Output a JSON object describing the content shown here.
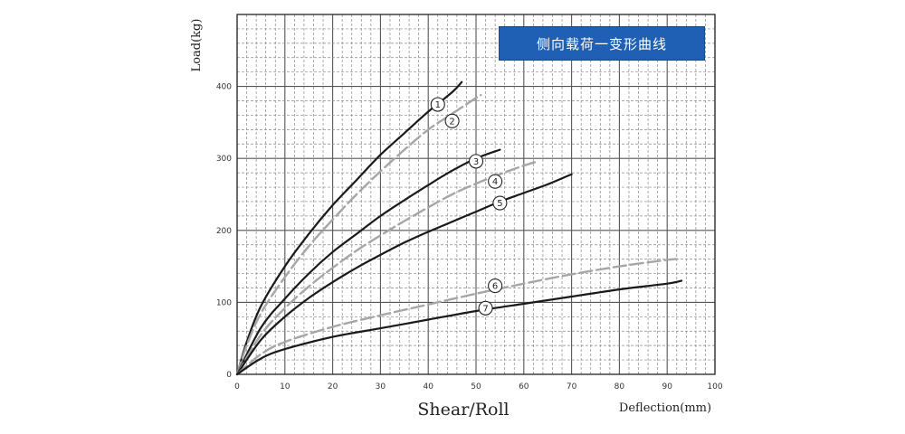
{
  "chart_data": {
    "type": "line",
    "title_badge": "侧向载荷一变形曲线",
    "bottom_title": "Shear/Roll",
    "xlabel": "Deflection(mm)",
    "ylabel": "Load(kg)",
    "xlim": [
      0,
      100
    ],
    "ylim": [
      0,
      500
    ],
    "x_ticks": [
      0,
      10,
      20,
      30,
      40,
      50,
      60,
      70,
      80,
      90,
      100
    ],
    "y_ticks": [
      0,
      100,
      200,
      300,
      400
    ],
    "grid": true,
    "series": [
      {
        "name": "1",
        "color": "#1a1a1a",
        "dashed": false,
        "points": [
          [
            0,
            0
          ],
          [
            2,
            45
          ],
          [
            5,
            95
          ],
          [
            10,
            150
          ],
          [
            15,
            195
          ],
          [
            20,
            235
          ],
          [
            25,
            270
          ],
          [
            30,
            305
          ],
          [
            35,
            335
          ],
          [
            40,
            365
          ],
          [
            45,
            392
          ],
          [
            47,
            406
          ]
        ],
        "label_at": [
          42,
          375
        ]
      },
      {
        "name": "2",
        "color": "#a6a6a6",
        "dashed": true,
        "points": [
          [
            0,
            0
          ],
          [
            2,
            40
          ],
          [
            5,
            85
          ],
          [
            10,
            135
          ],
          [
            15,
            178
          ],
          [
            20,
            215
          ],
          [
            25,
            250
          ],
          [
            30,
            282
          ],
          [
            35,
            312
          ],
          [
            40,
            340
          ],
          [
            45,
            362
          ],
          [
            50,
            384
          ],
          [
            51,
            388
          ]
        ],
        "label_at": [
          45,
          352
        ]
      },
      {
        "name": "3",
        "color": "#1a1a1a",
        "dashed": false,
        "points": [
          [
            0,
            0
          ],
          [
            5,
            65
          ],
          [
            10,
            105
          ],
          [
            15,
            140
          ],
          [
            20,
            170
          ],
          [
            25,
            195
          ],
          [
            30,
            220
          ],
          [
            35,
            242
          ],
          [
            40,
            263
          ],
          [
            45,
            283
          ],
          [
            50,
            300
          ],
          [
            55,
            312
          ]
        ],
        "label_at": [
          50,
          296
        ]
      },
      {
        "name": "4",
        "color": "#a6a6a6",
        "dashed": true,
        "points": [
          [
            0,
            0
          ],
          [
            5,
            55
          ],
          [
            10,
            92
          ],
          [
            15,
            122
          ],
          [
            20,
            148
          ],
          [
            25,
            172
          ],
          [
            30,
            193
          ],
          [
            35,
            213
          ],
          [
            40,
            232
          ],
          [
            45,
            250
          ],
          [
            50,
            265
          ],
          [
            55,
            278
          ],
          [
            60,
            290
          ],
          [
            63,
            296
          ]
        ],
        "label_at": [
          54,
          268
        ]
      },
      {
        "name": "5",
        "color": "#1a1a1a",
        "dashed": false,
        "points": [
          [
            0,
            0
          ],
          [
            5,
            48
          ],
          [
            10,
            80
          ],
          [
            15,
            106
          ],
          [
            20,
            128
          ],
          [
            25,
            148
          ],
          [
            30,
            166
          ],
          [
            35,
            183
          ],
          [
            40,
            198
          ],
          [
            45,
            212
          ],
          [
            50,
            226
          ],
          [
            55,
            240
          ],
          [
            60,
            252
          ],
          [
            65,
            264
          ],
          [
            70,
            278
          ]
        ],
        "label_at": [
          55,
          238
        ]
      },
      {
        "name": "6",
        "color": "#a6a6a6",
        "dashed": true,
        "points": [
          [
            0,
            0
          ],
          [
            5,
            28
          ],
          [
            10,
            45
          ],
          [
            20,
            66
          ],
          [
            30,
            82
          ],
          [
            40,
            97
          ],
          [
            50,
            112
          ],
          [
            60,
            126
          ],
          [
            70,
            139
          ],
          [
            80,
            150
          ],
          [
            90,
            159
          ],
          [
            92,
            160
          ]
        ],
        "label_at": [
          54,
          123
        ]
      },
      {
        "name": "7",
        "color": "#1a1a1a",
        "dashed": false,
        "points": [
          [
            0,
            0
          ],
          [
            5,
            22
          ],
          [
            10,
            35
          ],
          [
            20,
            52
          ],
          [
            30,
            64
          ],
          [
            40,
            76
          ],
          [
            50,
            88
          ],
          [
            60,
            98
          ],
          [
            70,
            108
          ],
          [
            80,
            118
          ],
          [
            90,
            126
          ],
          [
            93,
            130
          ]
        ],
        "label_at": [
          52,
          92
        ]
      }
    ]
  }
}
